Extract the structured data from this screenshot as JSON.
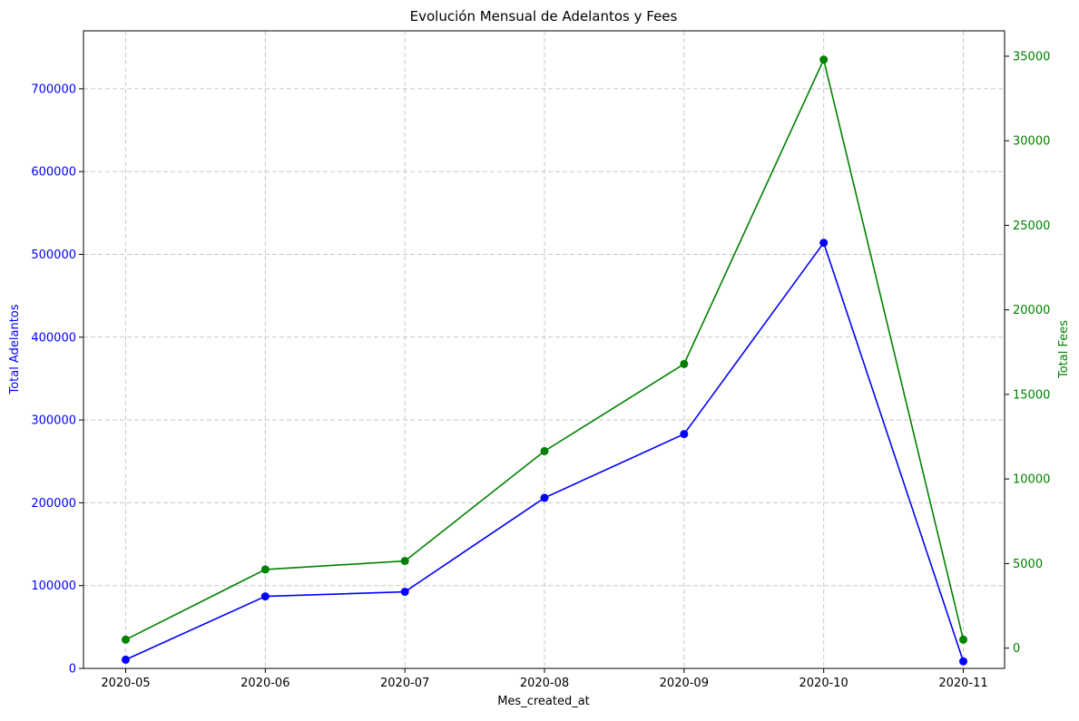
{
  "chart_data": {
    "type": "line",
    "title": "Evolución Mensual de Adelantos y Fees",
    "xlabel": "Mes_created_at",
    "categories": [
      "2020-05",
      "2020-06",
      "2020-07",
      "2020-08",
      "2020-09",
      "2020-10",
      "2020-11"
    ],
    "grid": true,
    "y_left": {
      "label": "Total Adelantos",
      "color": "#0000ff",
      "ylim": [
        0,
        770000
      ],
      "ticks": [
        "0",
        "100000",
        "200000",
        "300000",
        "400000",
        "500000",
        "600000",
        "700000"
      ],
      "tick_values": [
        0,
        100000,
        200000,
        300000,
        400000,
        500000,
        600000,
        700000
      ]
    },
    "y_right": {
      "label": "Total Fees",
      "color": "#008000",
      "ylim": [
        -1200,
        36500
      ],
      "ticks": [
        "0",
        "5000",
        "10000",
        "15000",
        "20000",
        "25000",
        "30000",
        "35000"
      ],
      "tick_values": [
        0,
        5000,
        10000,
        15000,
        20000,
        25000,
        30000,
        35000
      ]
    },
    "series": [
      {
        "axis": "left",
        "color": "#0000ff",
        "values": [
          10500,
          87000,
          92500,
          206000,
          283000,
          514000,
          8500
        ]
      },
      {
        "axis": "right",
        "color": "#008000",
        "values": [
          500,
          4650,
          5150,
          11650,
          16800,
          34800,
          500
        ]
      }
    ]
  }
}
